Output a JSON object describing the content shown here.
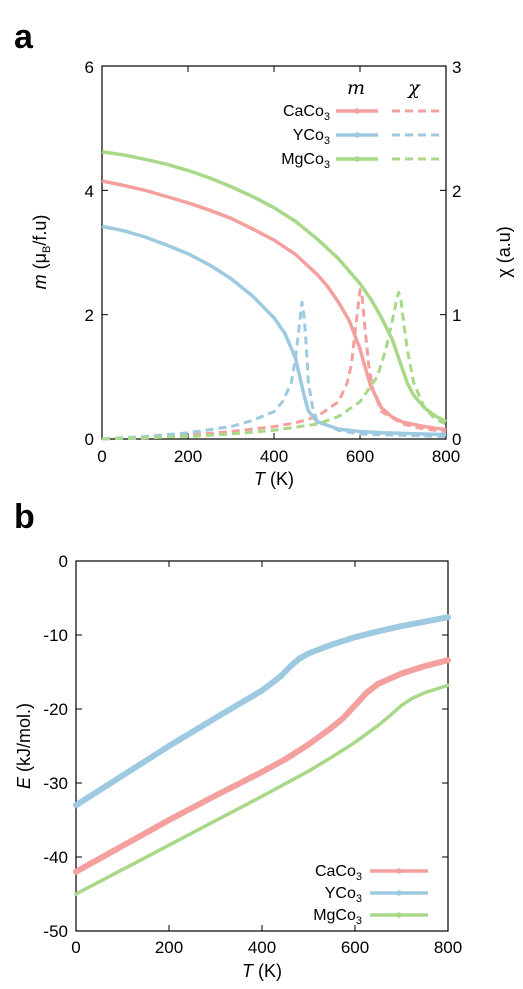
{
  "chart_data": [
    {
      "panel": "a",
      "type": "line",
      "xlabel_italic": "T",
      "xlabel_unit": " (K)",
      "ylabel_italic": "m",
      "ylabel_rest": " (μ",
      "ylabel_sub": "B",
      "ylabel_tail": "/f.u)",
      "y2label": "χ (a.u)",
      "xlim": [
        0,
        800
      ],
      "ylim": [
        0,
        6
      ],
      "y2lim": [
        0,
        3
      ],
      "xticks": [
        "0",
        "200",
        "400",
        "600",
        "800"
      ],
      "yticks": [
        "0",
        "2",
        "4",
        "6"
      ],
      "y2ticks": [
        "0",
        "1",
        "2",
        "3"
      ],
      "legend_position": "top-right",
      "legend_headers": [
        "m",
        "χ"
      ],
      "series": [
        {
          "name_main": "CaCo",
          "name_sub": "3",
          "color": "#f4a09e",
          "m": {
            "x": [
              0,
              50,
              100,
              150,
              200,
              250,
              300,
              350,
              400,
              450,
              500,
              525,
              550,
              575,
              600,
              610,
              625,
              650,
              675,
              700,
              750,
              800
            ],
            "y": [
              4.15,
              4.08,
              4.0,
              3.9,
              3.8,
              3.68,
              3.55,
              3.38,
              3.2,
              2.97,
              2.65,
              2.45,
              2.2,
              1.9,
              1.45,
              1.2,
              0.85,
              0.5,
              0.35,
              0.27,
              0.2,
              0.15
            ]
          },
          "chi": {
            "x": [
              0,
              100,
              200,
              300,
              400,
              450,
              500,
              550,
              570,
              580,
              590,
              600,
              605,
              610,
              620,
              630,
              650,
              700,
              750,
              800
            ],
            "y": [
              0.0,
              0.01,
              0.03,
              0.06,
              0.1,
              0.13,
              0.18,
              0.3,
              0.45,
              0.6,
              0.9,
              1.2,
              1.15,
              0.95,
              0.6,
              0.4,
              0.22,
              0.12,
              0.08,
              0.06
            ]
          }
        },
        {
          "name_main": "YCo",
          "name_sub": "3",
          "color": "#9ecae1",
          "m": {
            "x": [
              0,
              50,
              100,
              150,
              200,
              250,
              300,
              350,
              400,
              425,
              450,
              460,
              470,
              480,
              500,
              550,
              600,
              650,
              700,
              800
            ],
            "y": [
              3.42,
              3.35,
              3.25,
              3.12,
              2.98,
              2.8,
              2.58,
              2.3,
              1.95,
              1.7,
              1.3,
              1.0,
              0.7,
              0.45,
              0.28,
              0.16,
              0.12,
              0.1,
              0.09,
              0.07
            ]
          },
          "chi": {
            "x": [
              0,
              100,
              200,
              300,
              350,
              400,
              420,
              440,
              450,
              460,
              465,
              470,
              475,
              480,
              490,
              500,
              550,
              600,
              700,
              800
            ],
            "y": [
              0.0,
              0.02,
              0.05,
              0.1,
              0.15,
              0.22,
              0.3,
              0.45,
              0.65,
              0.95,
              1.1,
              0.98,
              0.75,
              0.45,
              0.25,
              0.15,
              0.07,
              0.04,
              0.03,
              0.02
            ]
          }
        },
        {
          "name_main": "MgCo",
          "name_sub": "3",
          "color": "#a8d988",
          "m": {
            "x": [
              0,
              50,
              100,
              150,
              200,
              250,
              300,
              350,
              400,
              450,
              500,
              550,
              600,
              625,
              650,
              675,
              690,
              700,
              710,
              725,
              750,
              775,
              800
            ],
            "y": [
              4.62,
              4.57,
              4.5,
              4.42,
              4.32,
              4.2,
              4.06,
              3.9,
              3.72,
              3.5,
              3.22,
              2.9,
              2.5,
              2.25,
              1.95,
              1.6,
              1.3,
              1.1,
              0.9,
              0.7,
              0.5,
              0.37,
              0.28
            ]
          },
          "chi": {
            "x": [
              0,
              100,
              200,
              300,
              400,
              500,
              550,
              600,
              640,
              660,
              675,
              685,
              690,
              695,
              700,
              710,
              725,
              750,
              775,
              800
            ],
            "y": [
              0.0,
              0.01,
              0.02,
              0.04,
              0.07,
              0.12,
              0.18,
              0.3,
              0.5,
              0.72,
              0.95,
              1.12,
              1.18,
              1.12,
              0.98,
              0.72,
              0.45,
              0.25,
              0.16,
              0.12
            ]
          }
        }
      ]
    },
    {
      "panel": "b",
      "type": "line",
      "xlabel_italic": "T",
      "xlabel_unit": " (K)",
      "ylabel_italic": "E",
      "ylabel_rest": " (kJ/mol.)",
      "xlim": [
        0,
        800
      ],
      "ylim": [
        -50,
        0
      ],
      "xticks": [
        "0",
        "200",
        "400",
        "600",
        "800"
      ],
      "yticks": [
        "-50",
        "-40",
        "-30",
        "-20",
        "-10",
        "0"
      ],
      "legend_position": "bottom-right",
      "series": [
        {
          "name_main": "CaCo",
          "name_sub": "3",
          "color": "#f4a09e",
          "x": [
            0,
            100,
            200,
            300,
            400,
            450,
            500,
            550,
            575,
            600,
            625,
            650,
            700,
            750,
            800
          ],
          "y": [
            -42,
            -38.5,
            -35,
            -31.7,
            -28.5,
            -26.8,
            -24.8,
            -22.5,
            -21.2,
            -19.5,
            -17.8,
            -16.6,
            -15.2,
            -14.2,
            -13.4
          ]
        },
        {
          "name_main": "YCo",
          "name_sub": "3",
          "color": "#9ecae1",
          "x": [
            0,
            100,
            200,
            300,
            400,
            440,
            460,
            480,
            500,
            550,
            600,
            650,
            700,
            750,
            800
          ],
          "y": [
            -33,
            -29,
            -25,
            -21.2,
            -17.5,
            -15.6,
            -14.3,
            -13.2,
            -12.5,
            -11.3,
            -10.3,
            -9.5,
            -8.8,
            -8.2,
            -7.6
          ]
        },
        {
          "name_main": "MgCo",
          "name_sub": "3",
          "color": "#a8d988",
          "x": [
            0,
            100,
            200,
            300,
            400,
            500,
            550,
            600,
            650,
            675,
            700,
            725,
            750,
            775,
            800
          ],
          "y": [
            -45,
            -41.7,
            -38.4,
            -35.1,
            -31.8,
            -28.4,
            -26.5,
            -24.5,
            -22.2,
            -20.9,
            -19.5,
            -18.5,
            -17.8,
            -17.3,
            -16.8
          ]
        }
      ]
    }
  ]
}
